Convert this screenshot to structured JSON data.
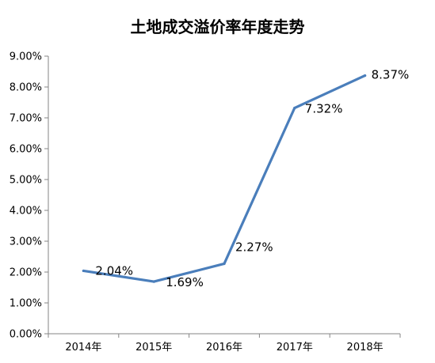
{
  "chart_data": {
    "type": "line",
    "title": "土地成交溢价率年度走势",
    "categories": [
      "2014年",
      "2015年",
      "2016年",
      "2017年",
      "2018年"
    ],
    "series": [
      {
        "values": [
          2.04,
          1.69,
          2.27,
          7.32,
          8.37
        ],
        "labels": [
          "2.04%",
          "1.69%",
          "2.27%",
          "7.32%",
          "8.37%"
        ]
      }
    ],
    "ylim": [
      0,
      9
    ],
    "yticks": [
      "0.00%",
      "1.00%",
      "2.00%",
      "3.00%",
      "4.00%",
      "5.00%",
      "6.00%",
      "7.00%",
      "8.00%",
      "9.00%"
    ],
    "grid": false,
    "line_color": "#4a7ebb",
    "axis_color": "#868686"
  }
}
